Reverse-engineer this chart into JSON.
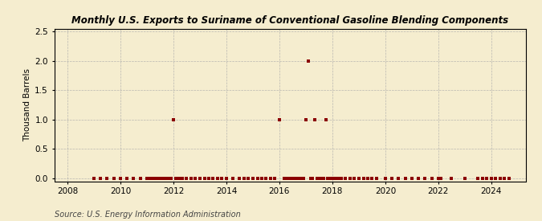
{
  "title": "Monthly U.S. Exports to Suriname of Conventional Gasoline Blending Components",
  "ylabel": "Thousand Barrels",
  "source": "Source: U.S. Energy Information Administration",
  "background_color": "#f5edcf",
  "plot_background_color": "#f5edcf",
  "marker_color": "#8b0000",
  "marker_size": 3,
  "xlim_left": 2007.5,
  "xlim_right": 2025.3,
  "ylim_bottom": -0.05,
  "ylim_top": 2.55,
  "yticks": [
    0.0,
    0.5,
    1.0,
    1.5,
    2.0,
    2.5
  ],
  "xticks": [
    2008,
    2010,
    2012,
    2014,
    2016,
    2018,
    2020,
    2022,
    2024
  ],
  "data_points": [
    [
      2009.0,
      0.0
    ],
    [
      2009.25,
      0.0
    ],
    [
      2009.5,
      0.0
    ],
    [
      2009.75,
      0.0
    ],
    [
      2010.0,
      0.0
    ],
    [
      2010.25,
      0.0
    ],
    [
      2010.5,
      0.0
    ],
    [
      2010.75,
      0.0
    ],
    [
      2011.0,
      0.0
    ],
    [
      2011.08,
      0.0
    ],
    [
      2011.17,
      0.0
    ],
    [
      2011.25,
      0.0
    ],
    [
      2011.33,
      0.0
    ],
    [
      2011.42,
      0.0
    ],
    [
      2011.5,
      0.0
    ],
    [
      2011.58,
      0.0
    ],
    [
      2011.67,
      0.0
    ],
    [
      2011.75,
      0.0
    ],
    [
      2011.83,
      0.0
    ],
    [
      2011.92,
      0.0
    ],
    [
      2012.0,
      1.0
    ],
    [
      2012.08,
      0.0
    ],
    [
      2012.17,
      0.0
    ],
    [
      2012.25,
      0.0
    ],
    [
      2012.33,
      0.0
    ],
    [
      2012.5,
      0.0
    ],
    [
      2012.67,
      0.0
    ],
    [
      2012.83,
      0.0
    ],
    [
      2013.0,
      0.0
    ],
    [
      2013.17,
      0.0
    ],
    [
      2013.33,
      0.0
    ],
    [
      2013.5,
      0.0
    ],
    [
      2013.67,
      0.0
    ],
    [
      2013.83,
      0.0
    ],
    [
      2014.0,
      0.0
    ],
    [
      2014.25,
      0.0
    ],
    [
      2014.5,
      0.0
    ],
    [
      2014.67,
      0.0
    ],
    [
      2014.83,
      0.0
    ],
    [
      2015.0,
      0.0
    ],
    [
      2015.17,
      0.0
    ],
    [
      2015.33,
      0.0
    ],
    [
      2015.5,
      0.0
    ],
    [
      2015.67,
      0.0
    ],
    [
      2015.83,
      0.0
    ],
    [
      2016.0,
      1.0
    ],
    [
      2016.17,
      0.0
    ],
    [
      2016.25,
      0.0
    ],
    [
      2016.33,
      0.0
    ],
    [
      2016.42,
      0.0
    ],
    [
      2016.5,
      0.0
    ],
    [
      2016.58,
      0.0
    ],
    [
      2016.67,
      0.0
    ],
    [
      2016.75,
      0.0
    ],
    [
      2016.83,
      0.0
    ],
    [
      2016.92,
      0.0
    ],
    [
      2017.0,
      1.0
    ],
    [
      2017.08,
      2.0
    ],
    [
      2017.17,
      0.0
    ],
    [
      2017.25,
      0.0
    ],
    [
      2017.33,
      1.0
    ],
    [
      2017.42,
      0.0
    ],
    [
      2017.5,
      0.0
    ],
    [
      2017.58,
      0.0
    ],
    [
      2017.67,
      0.0
    ],
    [
      2017.75,
      1.0
    ],
    [
      2017.83,
      0.0
    ],
    [
      2017.92,
      0.0
    ],
    [
      2018.0,
      0.0
    ],
    [
      2018.08,
      0.0
    ],
    [
      2018.17,
      0.0
    ],
    [
      2018.25,
      0.0
    ],
    [
      2018.33,
      0.0
    ],
    [
      2018.5,
      0.0
    ],
    [
      2018.67,
      0.0
    ],
    [
      2018.83,
      0.0
    ],
    [
      2019.0,
      0.0
    ],
    [
      2019.17,
      0.0
    ],
    [
      2019.33,
      0.0
    ],
    [
      2019.5,
      0.0
    ],
    [
      2019.67,
      0.0
    ],
    [
      2020.0,
      0.0
    ],
    [
      2020.25,
      0.0
    ],
    [
      2020.5,
      0.0
    ],
    [
      2020.75,
      0.0
    ],
    [
      2021.0,
      0.0
    ],
    [
      2021.25,
      0.0
    ],
    [
      2021.5,
      0.0
    ],
    [
      2021.75,
      0.0
    ],
    [
      2022.0,
      0.0
    ],
    [
      2022.08,
      0.0
    ],
    [
      2022.5,
      0.0
    ],
    [
      2023.0,
      0.0
    ],
    [
      2023.5,
      0.0
    ],
    [
      2023.67,
      0.0
    ],
    [
      2023.83,
      0.0
    ],
    [
      2024.0,
      0.0
    ],
    [
      2024.17,
      0.0
    ],
    [
      2024.33,
      0.0
    ],
    [
      2024.5,
      0.0
    ],
    [
      2024.67,
      0.0
    ]
  ]
}
